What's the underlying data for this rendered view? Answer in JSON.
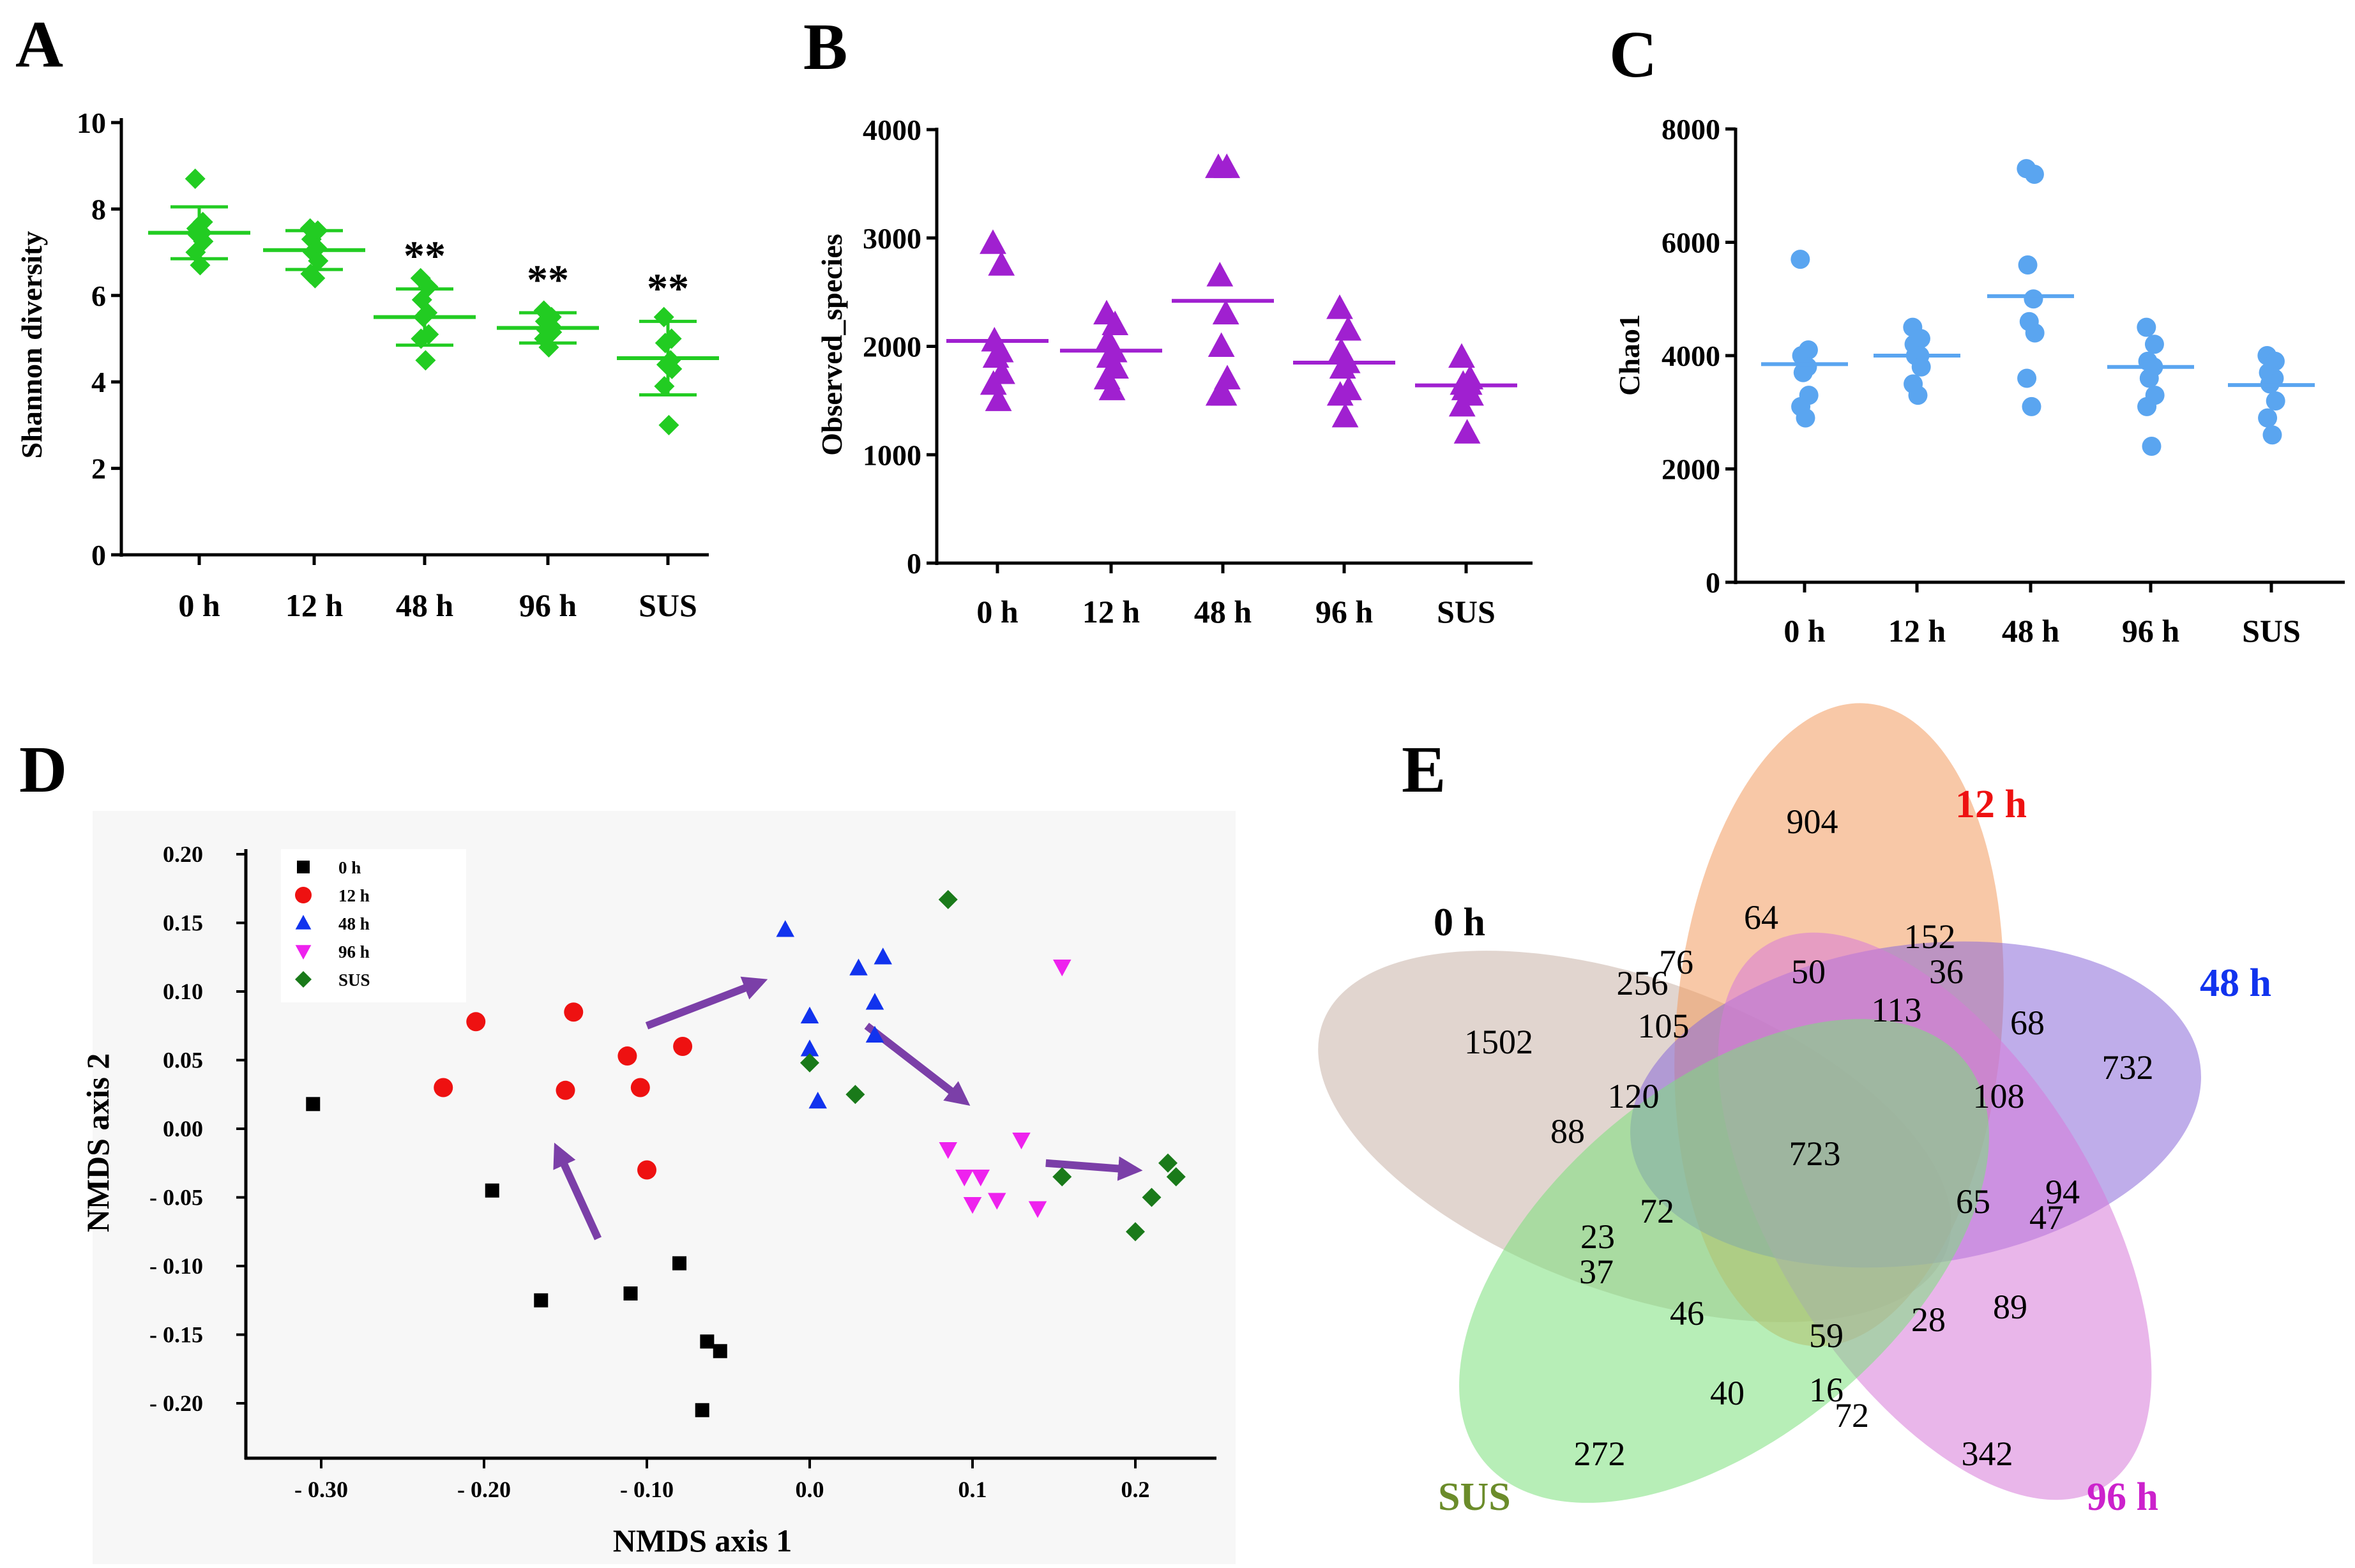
{
  "chart_data": [
    {
      "panel": "A",
      "type": "scatter",
      "ylabel": "Shannon diversity",
      "ylim": [
        0,
        10
      ],
      "yticks": [
        "0",
        "2",
        "4",
        "6",
        "8",
        "10"
      ],
      "categories": [
        "0 h",
        "12 h",
        "48 h",
        "96 h",
        "SUS"
      ],
      "color": "#22cc22",
      "marker": "diamond",
      "points": [
        [
          8.7,
          7.7,
          7.55,
          7.45,
          7.4,
          7.25,
          7.0,
          6.7
        ],
        [
          7.55,
          7.5,
          7.3,
          7.1,
          7.0,
          6.8,
          6.5,
          6.4
        ],
        [
          6.4,
          6.2,
          5.9,
          5.6,
          5.5,
          5.1,
          5.0,
          4.5
        ],
        [
          5.65,
          5.5,
          5.4,
          5.3,
          5.2,
          5.15,
          5.0,
          4.8
        ],
        [
          5.5,
          5.0,
          4.9,
          4.5,
          4.4,
          4.3,
          3.9,
          3.0
        ]
      ],
      "means": [
        7.45,
        7.05,
        5.5,
        5.25,
        4.55
      ],
      "sd": [
        0.6,
        0.45,
        0.65,
        0.35,
        0.85
      ],
      "annotations": [
        "",
        "",
        "**",
        "**",
        "**"
      ]
    },
    {
      "panel": "B",
      "type": "scatter",
      "ylabel": "Observed_species",
      "ylim": [
        0,
        4000
      ],
      "yticks": [
        "0",
        "1000",
        "2000",
        "3000",
        "4000"
      ],
      "categories": [
        "0 h",
        "12 h",
        "48 h",
        "96 h",
        "SUS"
      ],
      "color": "#a020d0",
      "marker": "triangle",
      "points": [
        [
          2950,
          2750,
          2050,
          1950,
          1900,
          1750,
          1650,
          1500
        ],
        [
          2300,
          2200,
          2050,
          1950,
          1900,
          1800,
          1700,
          1600
        ],
        [
          3650,
          3650,
          2650,
          2300,
          2000,
          1700,
          1550,
          1550
        ],
        [
          2350,
          2150,
          1950,
          1850,
          1800,
          1600,
          1550,
          1350
        ],
        [
          1900,
          1700,
          1650,
          1650,
          1600,
          1550,
          1450,
          1200
        ]
      ],
      "means": [
        2050,
        1960,
        2420,
        1850,
        1640
      ]
    },
    {
      "panel": "C",
      "type": "scatter",
      "ylabel": "Chao1",
      "ylim": [
        0,
        8000
      ],
      "yticks": [
        "0",
        "2000",
        "4000",
        "6000",
        "8000"
      ],
      "categories": [
        "0 h",
        "12 h",
        "48 h",
        "96 h",
        "SUS"
      ],
      "color": "#5aa5f0",
      "marker": "circle",
      "points": [
        [
          5700,
          4100,
          4000,
          3800,
          3700,
          3300,
          3100,
          2900
        ],
        [
          4500,
          4300,
          4200,
          4000,
          4000,
          3800,
          3500,
          3300
        ],
        [
          7300,
          7200,
          5600,
          5000,
          4600,
          4400,
          3600,
          3100
        ],
        [
          4500,
          4200,
          3900,
          3800,
          3600,
          3300,
          3100,
          2400
        ],
        [
          4000,
          3900,
          3700,
          3600,
          3500,
          3200,
          2900,
          2600
        ]
      ],
      "means": [
        3850,
        4000,
        5050,
        3800,
        3480
      ]
    },
    {
      "panel": "D",
      "type": "scatter",
      "xlabel": "NMDS axis 1",
      "ylabel": "NMDS axis 2",
      "xlim": [
        -0.35,
        0.25
      ],
      "ylim": [
        -0.24,
        0.22
      ],
      "xticks": [
        "- 0.30",
        "- 0.20",
        "- 0.10",
        "0.0",
        "0.1",
        "0.2"
      ],
      "yticks": [
        "0.20",
        "0.15",
        "0.10",
        "0.05",
        "0.00",
        "- 0.05",
        "- 0.10",
        "- 0.15",
        "- 0.20"
      ],
      "series": [
        {
          "name": "0 h",
          "color": "#000000",
          "marker": "square",
          "points": [
            [
              -0.305,
              0.018
            ],
            [
              -0.195,
              -0.045
            ],
            [
              -0.165,
              -0.125
            ],
            [
              -0.11,
              -0.12
            ],
            [
              -0.08,
              -0.098
            ],
            [
              -0.063,
              -0.155
            ],
            [
              -0.055,
              -0.162
            ],
            [
              -0.066,
              -0.205
            ]
          ]
        },
        {
          "name": "12 h",
          "color": "#ee1111",
          "marker": "circle",
          "points": [
            [
              -0.225,
              0.03
            ],
            [
              -0.205,
              0.078
            ],
            [
              -0.145,
              0.085
            ],
            [
              -0.15,
              0.028
            ],
            [
              -0.112,
              0.053
            ],
            [
              -0.104,
              0.03
            ],
            [
              -0.078,
              0.06
            ],
            [
              -0.1,
              -0.03
            ]
          ]
        },
        {
          "name": "48 h",
          "color": "#1133ee",
          "marker": "triangle-up",
          "points": [
            [
              -0.015,
              0.145
            ],
            [
              0.0,
              0.082
            ],
            [
              0.0,
              0.058
            ],
            [
              0.005,
              0.02
            ],
            [
              0.03,
              0.117
            ],
            [
              0.045,
              0.125
            ],
            [
              0.04,
              0.092
            ],
            [
              0.04,
              0.068
            ]
          ]
        },
        {
          "name": "96 h",
          "color": "#ee22ee",
          "marker": "triangle-down",
          "points": [
            [
              0.155,
              0.118
            ],
            [
              0.085,
              -0.015
            ],
            [
              0.095,
              -0.035
            ],
            [
              0.105,
              -0.035
            ],
            [
              0.1,
              -0.055
            ],
            [
              0.115,
              -0.052
            ],
            [
              0.13,
              -0.008
            ],
            [
              0.14,
              -0.058
            ]
          ]
        },
        {
          "name": "SUS",
          "color": "#1a7a1a",
          "marker": "diamond",
          "points": [
            [
              0.085,
              0.167
            ],
            [
              0.0,
              0.048
            ],
            [
              0.028,
              0.025
            ],
            [
              0.155,
              -0.035
            ],
            [
              0.2,
              -0.075
            ],
            [
              0.21,
              -0.05
            ],
            [
              0.22,
              -0.025
            ],
            [
              0.225,
              -0.035
            ]
          ]
        }
      ],
      "arrows": [
        {
          "from": [
            -0.13,
            -0.08
          ],
          "to": [
            -0.155,
            -0.015
          ]
        },
        {
          "from": [
            -0.1,
            0.075
          ],
          "to": [
            -0.03,
            0.107
          ]
        },
        {
          "from": [
            0.035,
            0.075
          ],
          "to": [
            0.095,
            0.02
          ]
        },
        {
          "from": [
            0.145,
            -0.025
          ],
          "to": [
            0.2,
            -0.03
          ]
        }
      ],
      "arrow_color": "#7b3fa8"
    },
    {
      "panel": "E",
      "type": "venn",
      "sets": [
        {
          "name": "0 h",
          "color": "#c9b3a8",
          "label_color": "#000000"
        },
        {
          "name": "12 h",
          "color": "#f29a5e",
          "label_color": "#ee1111"
        },
        {
          "name": "48 h",
          "color": "#8a6ad8",
          "label_color": "#1133ee"
        },
        {
          "name": "96 h",
          "color": "#d77ad8",
          "label_color": "#cc22cc"
        },
        {
          "name": "SUS",
          "color": "#7be07b",
          "label_color": "#6b8c2a"
        }
      ],
      "region_values": [
        "904",
        "1502",
        "732",
        "342",
        "272",
        "64",
        "256",
        "76",
        "152",
        "36",
        "50",
        "105",
        "113",
        "68",
        "120",
        "108",
        "88",
        "723",
        "72",
        "65",
        "94",
        "47",
        "23",
        "37",
        "46",
        "59",
        "28",
        "89",
        "40",
        "16",
        "72"
      ]
    }
  ]
}
